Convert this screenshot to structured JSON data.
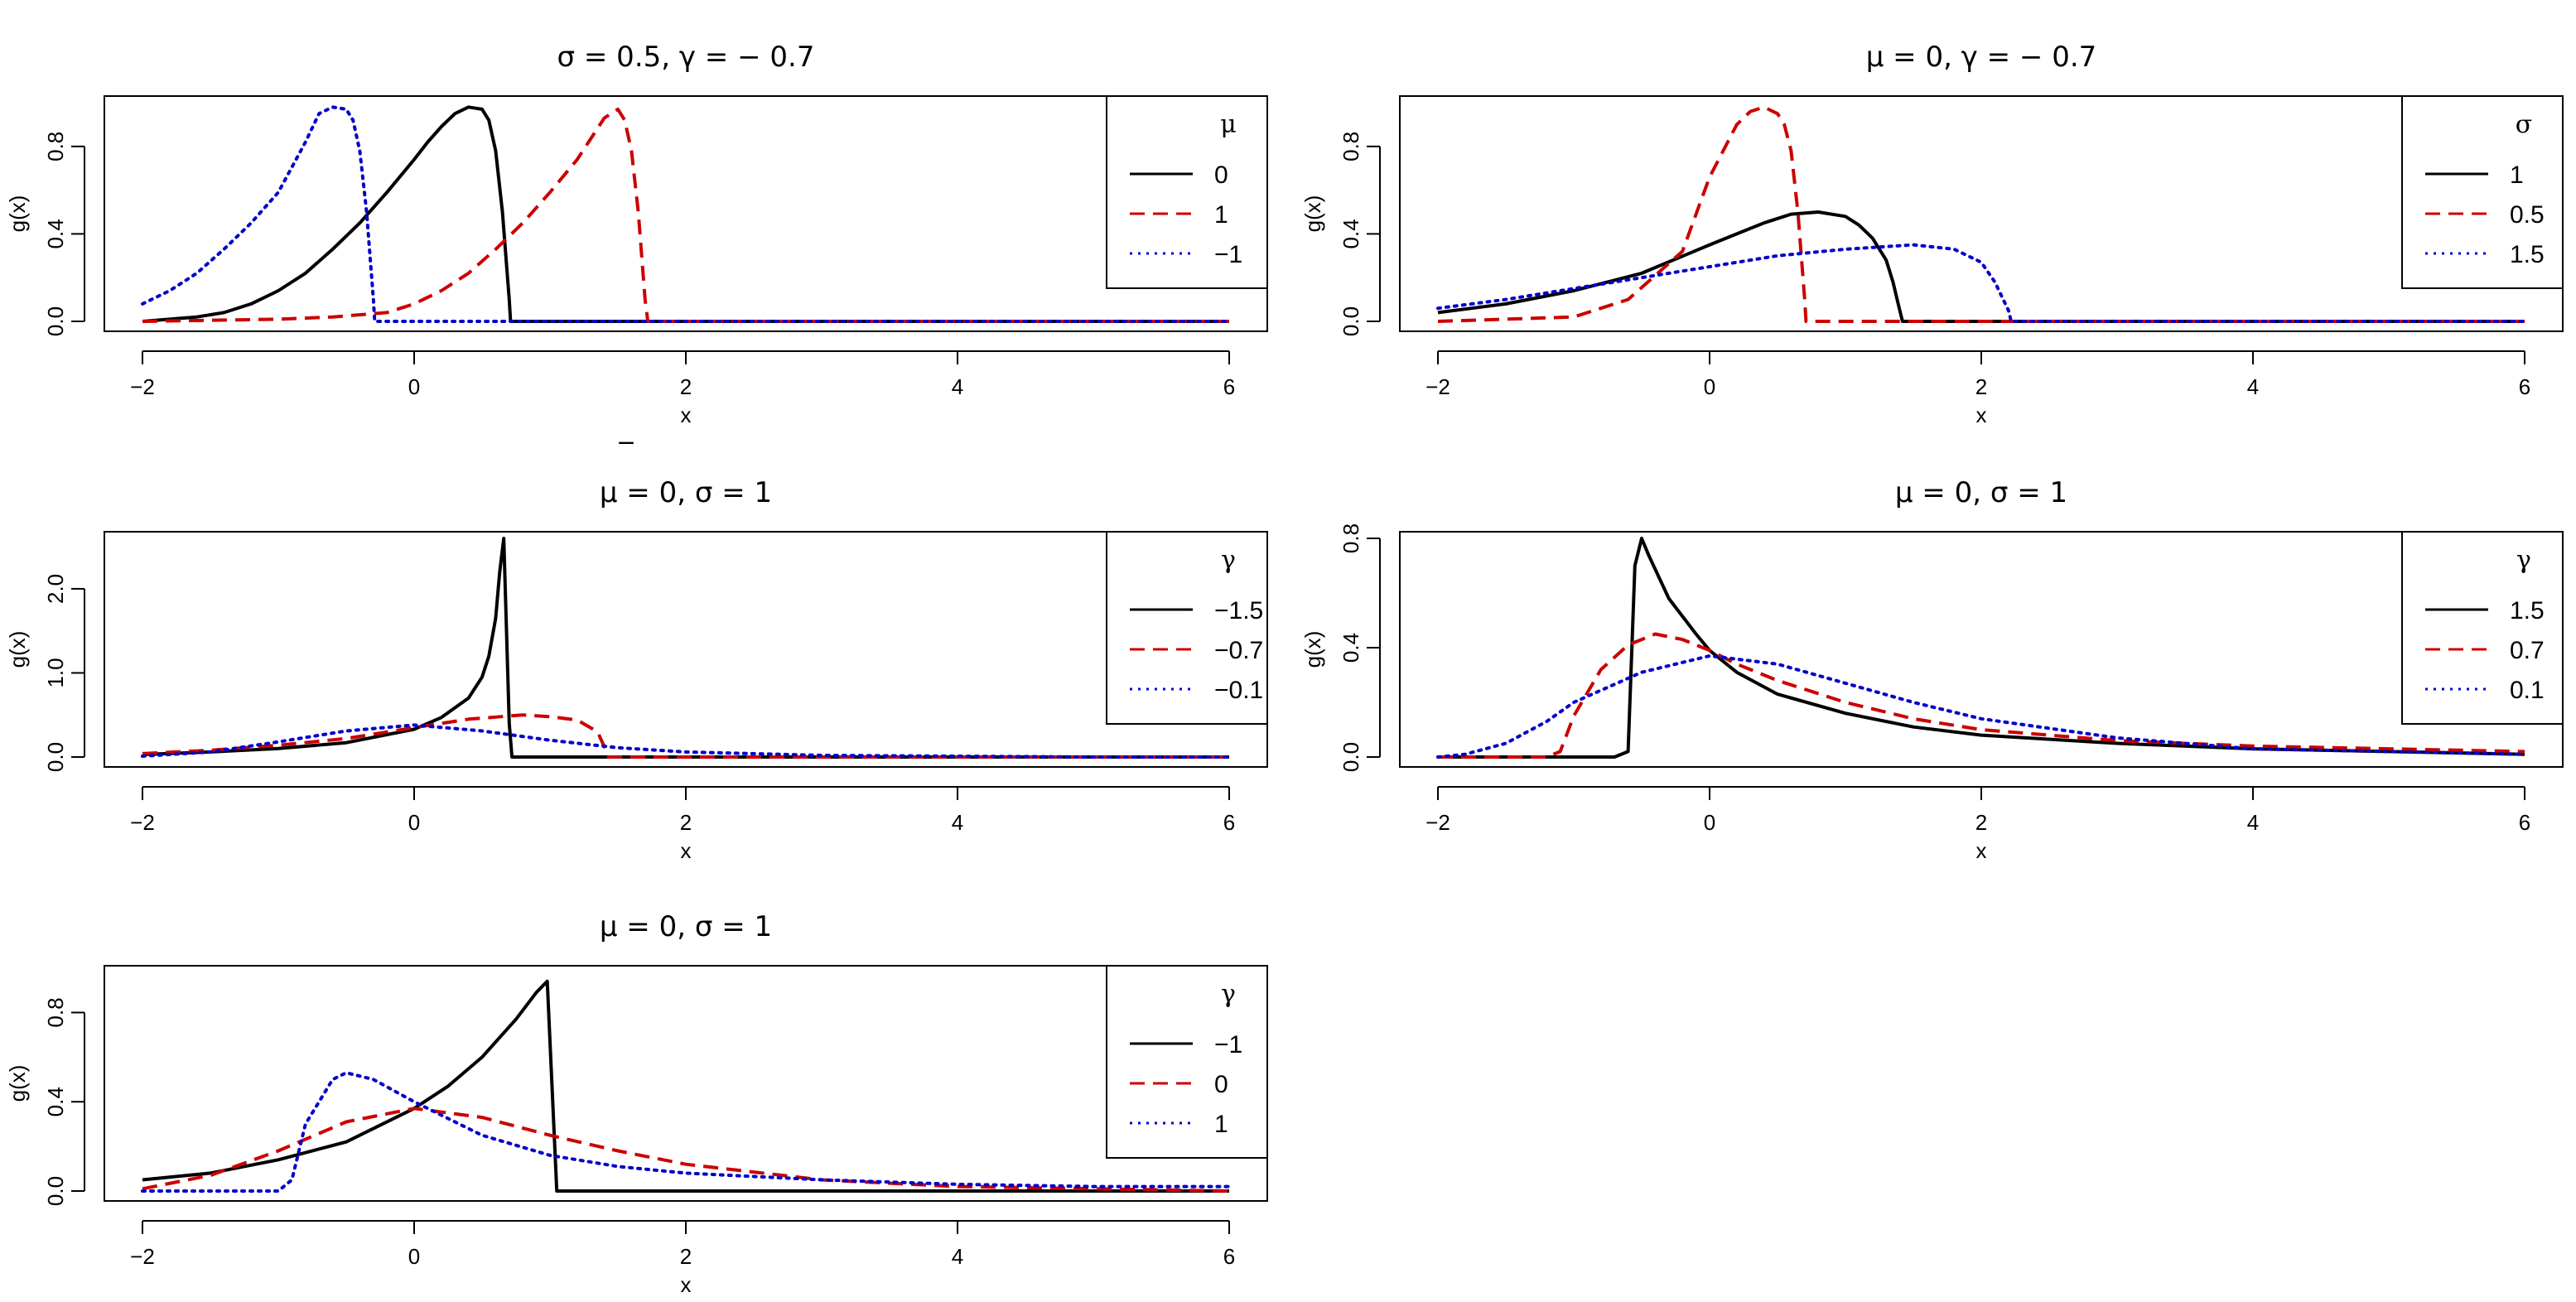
{
  "chart_data": [
    {
      "type": "line",
      "title": "σ = 0.5, γ = − 0.7",
      "xlabel": "x",
      "ylabel": "g(x)",
      "xlim": [
        -2,
        6
      ],
      "ylim": [
        0,
        1.0
      ],
      "xticks": [
        -2,
        0,
        2,
        4,
        6
      ],
      "yticks": [
        0.0,
        0.4,
        0.8
      ],
      "ytick_labels": [
        "0.0",
        "0.4",
        "0.8"
      ],
      "legend_title": "μ",
      "legend_position": "top-right",
      "series": [
        {
          "name": "0",
          "color": "#000000",
          "dash": "solid",
          "x": [
            -2,
            -1.8,
            -1.6,
            -1.4,
            -1.2,
            -1.0,
            -0.8,
            -0.6,
            -0.4,
            -0.2,
            0.0,
            0.1,
            0.2,
            0.3,
            0.4,
            0.5,
            0.55,
            0.6,
            0.65,
            0.7,
            0.71,
            6
          ],
          "y": [
            0.0,
            0.01,
            0.02,
            0.04,
            0.08,
            0.14,
            0.22,
            0.33,
            0.45,
            0.59,
            0.74,
            0.82,
            0.89,
            0.95,
            0.98,
            0.97,
            0.92,
            0.78,
            0.5,
            0.1,
            0.0,
            0.0
          ]
        },
        {
          "name": "1",
          "color": "#cc0000",
          "dash": "dashed",
          "x": [
            -2,
            -1.0,
            -0.6,
            -0.2,
            0.0,
            0.2,
            0.4,
            0.6,
            0.8,
            1.0,
            1.2,
            1.4,
            1.5,
            1.55,
            1.6,
            1.65,
            1.7,
            1.72,
            6
          ],
          "y": [
            0.0,
            0.01,
            0.02,
            0.04,
            0.08,
            0.14,
            0.22,
            0.33,
            0.45,
            0.59,
            0.74,
            0.93,
            0.97,
            0.92,
            0.78,
            0.5,
            0.1,
            0.0,
            0.0
          ]
        },
        {
          "name": "−1",
          "color": "#0000cc",
          "dash": "dotted",
          "x": [
            -2,
            -1.8,
            -1.6,
            -1.4,
            -1.2,
            -1.0,
            -0.8,
            -0.7,
            -0.6,
            -0.5,
            -0.45,
            -0.4,
            -0.35,
            -0.3,
            -0.29,
            6
          ],
          "y": [
            0.08,
            0.14,
            0.22,
            0.33,
            0.45,
            0.59,
            0.82,
            0.95,
            0.98,
            0.97,
            0.92,
            0.78,
            0.5,
            0.1,
            0.0,
            0.0
          ]
        }
      ]
    },
    {
      "type": "line",
      "title": "μ = 0, γ = − 0.7",
      "xlabel": "x",
      "ylabel": "g(x)",
      "xlim": [
        -2,
        6
      ],
      "ylim": [
        0,
        1.0
      ],
      "xticks": [
        -2,
        0,
        2,
        4,
        6
      ],
      "yticks": [
        0.0,
        0.4,
        0.8
      ],
      "ytick_labels": [
        "0.0",
        "0.4",
        "0.8"
      ],
      "legend_title": "σ",
      "legend_position": "top-right",
      "series": [
        {
          "name": "1",
          "color": "#000000",
          "dash": "solid",
          "x": [
            -2,
            -1.5,
            -1.0,
            -0.5,
            0.0,
            0.2,
            0.4,
            0.6,
            0.8,
            1.0,
            1.1,
            1.2,
            1.3,
            1.35,
            1.4,
            1.42,
            6
          ],
          "y": [
            0.04,
            0.08,
            0.14,
            0.22,
            0.35,
            0.4,
            0.45,
            0.49,
            0.5,
            0.48,
            0.44,
            0.38,
            0.28,
            0.18,
            0.05,
            0.0,
            0.0
          ]
        },
        {
          "name": "0.5",
          "color": "#cc0000",
          "dash": "dashed",
          "x": [
            -2,
            -1.0,
            -0.6,
            -0.2,
            0.0,
            0.2,
            0.3,
            0.4,
            0.5,
            0.55,
            0.6,
            0.65,
            0.7,
            0.71,
            6
          ],
          "y": [
            0.0,
            0.02,
            0.1,
            0.32,
            0.66,
            0.9,
            0.96,
            0.98,
            0.95,
            0.9,
            0.78,
            0.5,
            0.1,
            0.0,
            0.0
          ]
        },
        {
          "name": "1.5",
          "color": "#0000cc",
          "dash": "dotted",
          "x": [
            -2,
            -1.5,
            -1.0,
            -0.5,
            0.0,
            0.5,
            1.0,
            1.5,
            1.8,
            2.0,
            2.1,
            2.2,
            2.22,
            6
          ],
          "y": [
            0.06,
            0.1,
            0.15,
            0.2,
            0.25,
            0.3,
            0.33,
            0.35,
            0.33,
            0.27,
            0.18,
            0.05,
            0.0,
            0.0
          ]
        }
      ]
    },
    {
      "type": "line",
      "title": "μ = 0, σ = 1",
      "xlabel": "x",
      "ylabel": "g(x)",
      "xlim": [
        -2,
        6
      ],
      "ylim": [
        0,
        2.6
      ],
      "xticks": [
        -2,
        0,
        2,
        4,
        6
      ],
      "yticks": [
        0.0,
        1.0,
        2.0
      ],
      "ytick_labels": [
        "0.0",
        "1.0",
        "2.0"
      ],
      "legend_title": "γ",
      "legend_position": "top-right",
      "series": [
        {
          "name": "−1.5",
          "color": "#000000",
          "dash": "solid",
          "x": [
            -2,
            -1.5,
            -1.0,
            -0.5,
            0.0,
            0.2,
            0.4,
            0.5,
            0.55,
            0.6,
            0.63,
            0.66,
            0.7,
            0.72,
            6
          ],
          "y": [
            0.03,
            0.06,
            0.1,
            0.17,
            0.33,
            0.47,
            0.7,
            0.95,
            1.2,
            1.65,
            2.2,
            2.6,
            0.4,
            0.0,
            0.0
          ]
        },
        {
          "name": "−0.7",
          "color": "#cc0000",
          "dash": "dashed",
          "x": [
            -2,
            -1.5,
            -1.0,
            -0.5,
            0.0,
            0.4,
            0.8,
            1.0,
            1.2,
            1.35,
            1.42,
            1.43,
            6
          ],
          "y": [
            0.04,
            0.08,
            0.14,
            0.22,
            0.35,
            0.45,
            0.5,
            0.48,
            0.44,
            0.3,
            0.05,
            0.0,
            0.0
          ]
        },
        {
          "name": "−0.1",
          "color": "#0000cc",
          "dash": "dotted",
          "x": [
            -2,
            -1.5,
            -1.0,
            -0.5,
            0.0,
            0.5,
            1.0,
            1.5,
            2.0,
            3.0,
            4.0,
            5.0,
            6.0
          ],
          "y": [
            0.01,
            0.06,
            0.18,
            0.31,
            0.38,
            0.31,
            0.2,
            0.11,
            0.06,
            0.02,
            0.01,
            0.0,
            0.0
          ]
        }
      ]
    },
    {
      "type": "line",
      "title": "μ = 0, σ = 1",
      "xlabel": "x",
      "ylabel": "g(x)",
      "xlim": [
        -2,
        6
      ],
      "ylim": [
        0,
        0.8
      ],
      "xticks": [
        -2,
        0,
        2,
        4,
        6
      ],
      "yticks": [
        0.0,
        0.4,
        0.8
      ],
      "ytick_labels": [
        "0.0",
        "0.4",
        "0.8"
      ],
      "legend_title": "γ",
      "legend_position": "top-right",
      "series": [
        {
          "name": "1.5",
          "color": "#000000",
          "dash": "solid",
          "x": [
            -2,
            -0.7,
            -0.6,
            -0.55,
            -0.5,
            -0.45,
            -0.3,
            -0.1,
            0.0,
            0.2,
            0.5,
            1.0,
            1.5,
            2.0,
            3.0,
            4.0,
            5.0,
            6.0
          ],
          "y": [
            0.0,
            0.0,
            0.02,
            0.7,
            0.8,
            0.74,
            0.58,
            0.45,
            0.39,
            0.31,
            0.23,
            0.16,
            0.11,
            0.08,
            0.05,
            0.03,
            0.02,
            0.01
          ]
        },
        {
          "name": "0.7",
          "color": "#cc0000",
          "dash": "dashed",
          "x": [
            -2,
            -1.2,
            -1.1,
            -1.0,
            -0.8,
            -0.6,
            -0.4,
            -0.2,
            0.0,
            0.2,
            0.5,
            1.0,
            1.5,
            2.0,
            3.0,
            4.0,
            5.0,
            6.0
          ],
          "y": [
            0.0,
            0.0,
            0.02,
            0.15,
            0.32,
            0.41,
            0.45,
            0.43,
            0.39,
            0.34,
            0.28,
            0.2,
            0.14,
            0.1,
            0.06,
            0.04,
            0.03,
            0.02
          ]
        },
        {
          "name": "0.1",
          "color": "#0000cc",
          "dash": "dotted",
          "x": [
            -2,
            -1.8,
            -1.5,
            -1.2,
            -1.0,
            -0.5,
            0.0,
            0.5,
            1.0,
            1.5,
            2.0,
            3.0,
            4.0,
            5.0,
            6.0
          ],
          "y": [
            0.0,
            0.01,
            0.05,
            0.13,
            0.2,
            0.31,
            0.37,
            0.34,
            0.27,
            0.2,
            0.14,
            0.07,
            0.03,
            0.02,
            0.01
          ]
        }
      ]
    },
    {
      "type": "line",
      "title": "μ = 0, σ = 1",
      "xlabel": "x",
      "ylabel": "g(x)",
      "xlim": [
        -2,
        6
      ],
      "ylim": [
        0,
        0.98
      ],
      "xticks": [
        -2,
        0,
        2,
        4,
        6
      ],
      "yticks": [
        0.0,
        0.4,
        0.8
      ],
      "ytick_labels": [
        "0.0",
        "0.4",
        "0.8"
      ],
      "legend_title": "γ",
      "legend_position": "top-right",
      "series": [
        {
          "name": "−1",
          "color": "#000000",
          "dash": "solid",
          "x": [
            -2,
            -1.5,
            -1.0,
            -0.5,
            0.0,
            0.25,
            0.5,
            0.75,
            0.9,
            0.98,
            1.05,
            6
          ],
          "y": [
            0.05,
            0.08,
            0.14,
            0.22,
            0.37,
            0.47,
            0.6,
            0.77,
            0.89,
            0.94,
            0.0,
            0.0
          ]
        },
        {
          "name": "0",
          "color": "#cc0000",
          "dash": "dashed",
          "x": [
            -2,
            -1.5,
            -1.0,
            -0.5,
            0.0,
            0.5,
            1.0,
            1.5,
            2.0,
            3.0,
            4.0,
            5.0,
            6.0
          ],
          "y": [
            0.01,
            0.07,
            0.18,
            0.31,
            0.37,
            0.33,
            0.25,
            0.18,
            0.12,
            0.05,
            0.02,
            0.01,
            0.0
          ]
        },
        {
          "name": "1",
          "color": "#0000cc",
          "dash": "dotted",
          "x": [
            -2,
            -1.0,
            -0.9,
            -0.8,
            -0.6,
            -0.5,
            -0.3,
            0.0,
            0.5,
            1.0,
            1.5,
            2.0,
            3.0,
            4.0,
            5.0,
            6.0
          ],
          "y": [
            0.0,
            0.0,
            0.05,
            0.3,
            0.5,
            0.53,
            0.5,
            0.4,
            0.25,
            0.16,
            0.11,
            0.08,
            0.05,
            0.03,
            0.02,
            0.02
          ]
        }
      ]
    }
  ],
  "stray_mark": "_"
}
